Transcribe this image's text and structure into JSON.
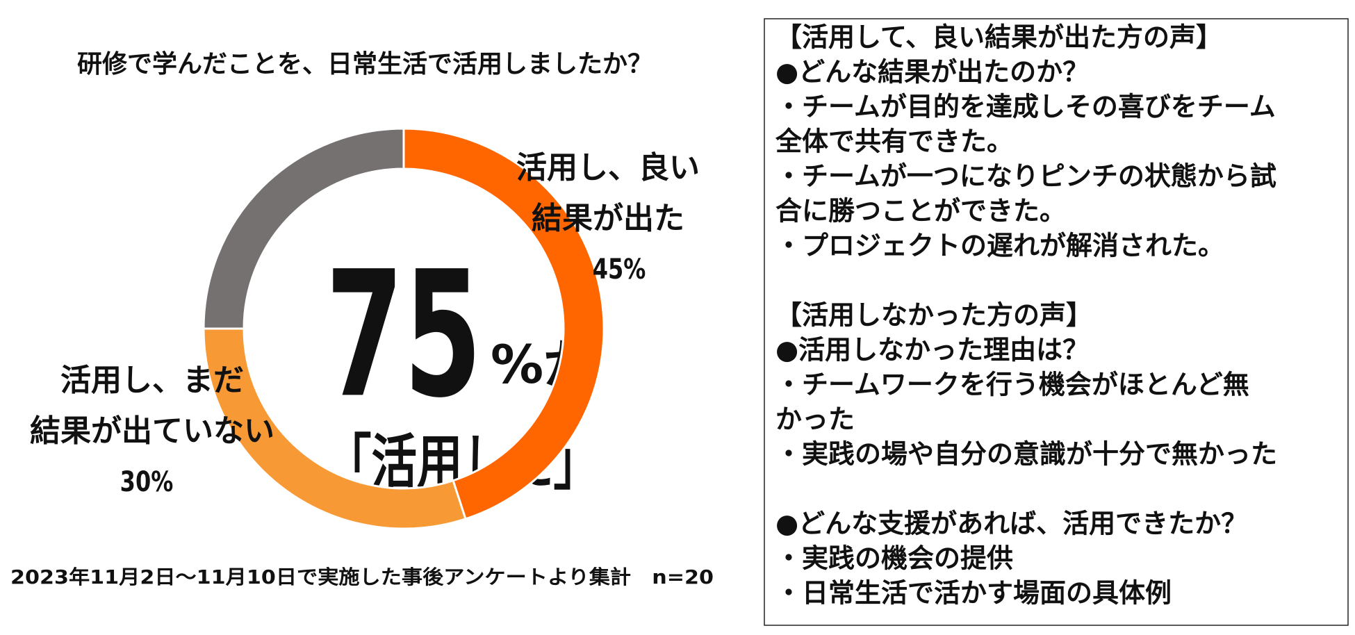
{
  "chart_data": {
    "type": "donut",
    "title": "研修で学んだことを、日常生活で活用しましたか？",
    "categories": [
      "活用し、良い\n結果が出た",
      "活用し、まだ\n結果が出ていない",
      null
    ],
    "values": [
      45,
      30,
      25
    ],
    "value_labels": [
      "45%",
      "30%",
      null
    ],
    "colors": [
      "#ff6600",
      "#f79a36",
      "#767171"
    ],
    "center_number": "75",
    "center_suffix": "%が",
    "center_label": "「活用した」",
    "source": "2023年11月2日～11月10日で実施した事後アンケートより集計　n=20"
  },
  "panel": {
    "sections": [
      [
        "【活用して、良い結果が出た方の声】",
        "●どんな結果が出たのか？",
        "・チームが目的を達成しその喜びをチーム",
        "全体で共有できた。",
        "・チームが一つになりピンチの状態から試",
        "合に勝つことができた。",
        "・プロジェクトの遅れが解消された。"
      ],
      [
        "【活用しなかった方の声】",
        "●活用しなかった理由は？",
        "・チームワークを行う機会がほとんど無",
        "かった",
        "・実践の場や自分の意識が十分で無かった"
      ],
      [
        "●どんな支援があれば、活用できたか？",
        "・実践の機会の提供",
        "・日常生活で活かす場面の具体例"
      ]
    ]
  }
}
